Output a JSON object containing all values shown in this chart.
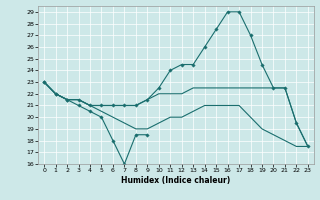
{
  "xlabel": "Humidex (Indice chaleur)",
  "bg_color": "#cde8e8",
  "line_color": "#1a6e6e",
  "xlim": [
    -0.5,
    23.5
  ],
  "ylim": [
    16,
    29.5
  ],
  "yticks": [
    16,
    17,
    18,
    19,
    20,
    21,
    22,
    23,
    24,
    25,
    26,
    27,
    28,
    29
  ],
  "xticks": [
    0,
    1,
    2,
    3,
    4,
    5,
    6,
    7,
    8,
    9,
    10,
    11,
    12,
    13,
    14,
    15,
    16,
    17,
    18,
    19,
    20,
    21,
    22,
    23
  ],
  "line1_x": [
    0,
    1,
    2,
    3,
    4,
    5,
    6,
    7,
    8,
    9
  ],
  "line1_y": [
    23,
    22,
    21.5,
    21,
    20.5,
    20,
    18,
    16,
    18.5,
    18.5
  ],
  "line2_x": [
    0,
    1,
    2,
    3,
    4,
    5,
    6,
    7,
    8,
    9,
    10,
    11,
    12,
    13,
    14,
    15,
    16,
    17,
    18,
    19,
    20,
    21,
    22,
    23
  ],
  "line2_y": [
    23,
    22,
    21.5,
    21.5,
    21,
    21,
    21,
    21,
    21,
    21.5,
    22.5,
    24,
    24.5,
    24.5,
    26,
    27.5,
    29,
    29,
    27,
    24.5,
    22.5,
    22.5,
    19.5,
    17.5
  ],
  "line3_x": [
    0,
    1,
    2,
    3,
    4,
    5,
    6,
    7,
    8,
    9,
    10,
    11,
    12,
    13,
    14,
    15,
    16,
    17,
    18,
    19,
    20,
    21,
    22,
    23
  ],
  "line3_y": [
    23,
    22,
    21.5,
    21.5,
    21,
    21,
    21,
    21,
    21,
    21.5,
    22,
    22,
    22,
    22.5,
    22.5,
    22.5,
    22.5,
    22.5,
    22.5,
    22.5,
    22.5,
    22.5,
    19.5,
    17.5
  ],
  "line4_x": [
    0,
    1,
    2,
    3,
    4,
    5,
    6,
    7,
    8,
    9,
    10,
    11,
    12,
    13,
    14,
    15,
    16,
    17,
    18,
    19,
    20,
    21,
    22,
    23
  ],
  "line4_y": [
    23,
    22,
    21.5,
    21.5,
    21,
    20.5,
    20,
    19.5,
    19,
    19,
    19.5,
    20,
    20,
    20.5,
    21,
    21,
    21,
    21,
    20,
    19,
    18.5,
    18,
    17.5,
    17.5
  ]
}
